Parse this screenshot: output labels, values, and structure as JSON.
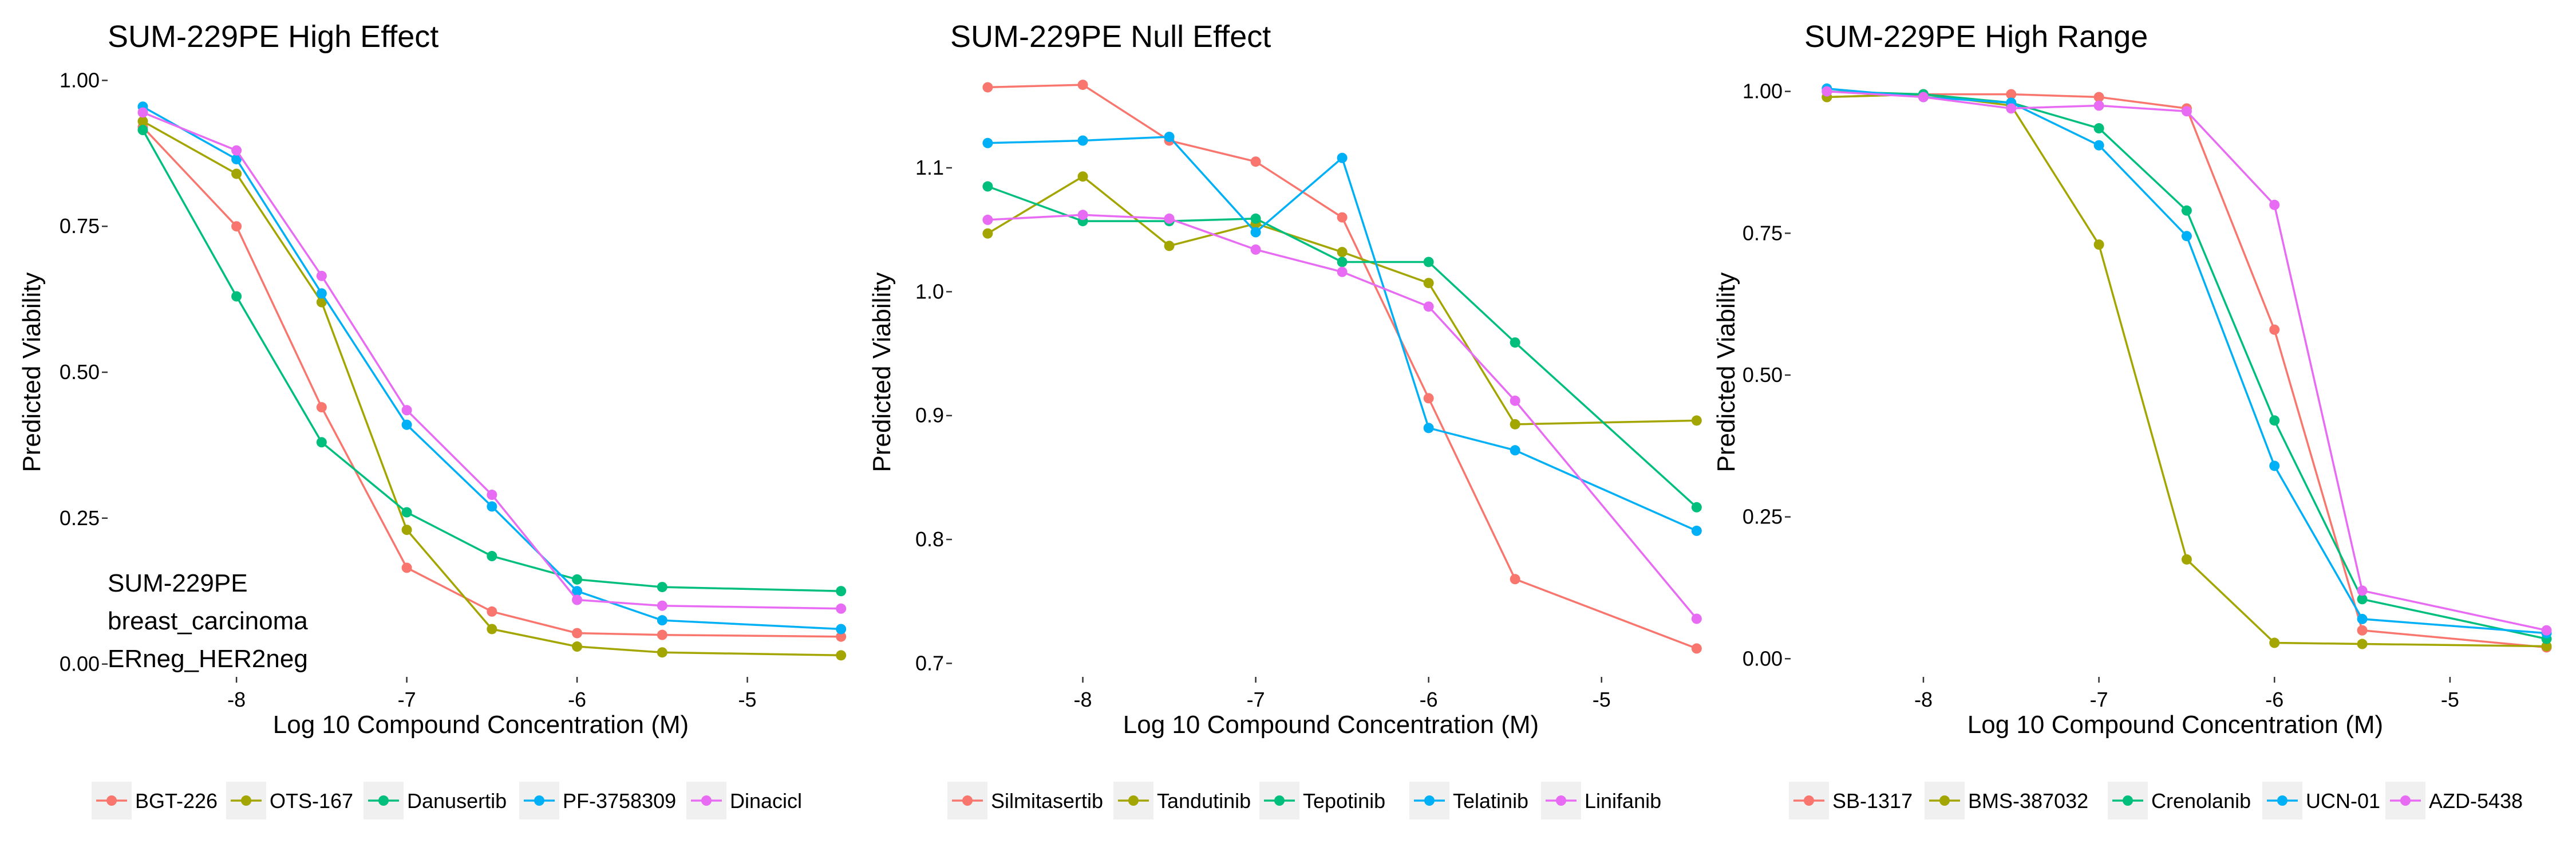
{
  "chart_data": [
    {
      "type": "line",
      "title": "SUM-229PE High Effect",
      "xlabel": "Log 10 Compound Concentration (M)",
      "ylabel": "Predicted Viability",
      "xlim": [
        -8.75,
        -4.38
      ],
      "ylim": [
        -0.02,
        1.02
      ],
      "x": [
        -8.55,
        -8.0,
        -7.5,
        -7.0,
        -6.5,
        -6.0,
        -5.5,
        -4.45
      ],
      "xticks": [
        {
          "v": -8,
          "label": "-8"
        },
        {
          "v": -7,
          "label": "-7"
        },
        {
          "v": -6,
          "label": "-6"
        },
        {
          "v": -5,
          "label": "-5"
        }
      ],
      "yticks": [
        {
          "v": 0.0,
          "label": "0.00"
        },
        {
          "v": 0.25,
          "label": "0.25"
        },
        {
          "v": 0.5,
          "label": "0.50"
        },
        {
          "v": 0.75,
          "label": "0.75"
        },
        {
          "v": 1.0,
          "label": "1.00"
        }
      ],
      "annotation": [
        "SUM-229PE",
        "breast_carcinoma",
        "ERneg_HER2neg"
      ],
      "legend_position": "bottom",
      "series": [
        {
          "name": "BGT-226",
          "color": "#F8766D",
          "values": [
            0.92,
            0.75,
            0.44,
            0.165,
            0.09,
            0.053,
            0.05,
            0.047
          ]
        },
        {
          "name": "OTS-167",
          "color": "#A3A500",
          "values": [
            0.93,
            0.84,
            0.62,
            0.23,
            0.06,
            0.03,
            0.02,
            0.015
          ]
        },
        {
          "name": "Danusertib",
          "color": "#00BF7D",
          "values": [
            0.915,
            0.63,
            0.38,
            0.26,
            0.185,
            0.145,
            0.132,
            0.125
          ]
        },
        {
          "name": "PF-3758309",
          "color": "#00B0F6",
          "values": [
            0.955,
            0.865,
            0.635,
            0.41,
            0.27,
            0.125,
            0.075,
            0.06
          ]
        },
        {
          "name": "Dinacicl",
          "color": "#E76BF3",
          "values": [
            0.945,
            0.88,
            0.665,
            0.435,
            0.29,
            0.11,
            0.1,
            0.095
          ]
        }
      ]
    },
    {
      "type": "line",
      "title": "SUM-229PE Null Effect",
      "xlabel": "Log 10 Compound Concentration (M)",
      "ylabel": "Predicted Viability",
      "xlim": [
        -8.75,
        -4.38
      ],
      "ylim": [
        0.69,
        1.18
      ],
      "x": [
        -8.55,
        -8.0,
        -7.5,
        -7.0,
        -6.5,
        -6.0,
        -5.5,
        -4.45
      ],
      "xticks": [
        {
          "v": -8,
          "label": "-8"
        },
        {
          "v": -7,
          "label": "-7"
        },
        {
          "v": -6,
          "label": "-6"
        },
        {
          "v": -5,
          "label": "-5"
        }
      ],
      "yticks": [
        {
          "v": 0.7,
          "label": "0.7"
        },
        {
          "v": 0.8,
          "label": "0.8"
        },
        {
          "v": 0.9,
          "label": "0.9"
        },
        {
          "v": 1.0,
          "label": "1.0"
        },
        {
          "v": 1.1,
          "label": "1.1"
        }
      ],
      "legend_position": "bottom",
      "series": [
        {
          "name": "Silmitasertib",
          "color": "#F8766D",
          "values": [
            1.165,
            1.167,
            1.122,
            1.105,
            1.06,
            0.914,
            0.768,
            0.712
          ]
        },
        {
          "name": "Tandutinib",
          "color": "#A3A500",
          "values": [
            1.047,
            1.093,
            1.037,
            1.055,
            1.032,
            1.007,
            0.893,
            0.896
          ]
        },
        {
          "name": "Tepotinib",
          "color": "#00BF7D",
          "values": [
            1.085,
            1.057,
            1.057,
            1.059,
            1.024,
            1.024,
            0.959,
            0.826
          ]
        },
        {
          "name": "Telatinib",
          "color": "#00B0F6",
          "values": [
            1.12,
            1.122,
            1.125,
            1.048,
            1.108,
            0.89,
            0.872,
            0.807
          ]
        },
        {
          "name": "Linifanib",
          "color": "#E76BF3",
          "values": [
            1.058,
            1.062,
            1.059,
            1.034,
            1.016,
            0.988,
            0.912,
            0.736
          ]
        }
      ]
    },
    {
      "type": "line",
      "title": "SUM-229PE High Range",
      "xlabel": "Log 10 Compound Concentration (M)",
      "ylabel": "Predicted Viability",
      "xlim": [
        -8.75,
        -4.38
      ],
      "ylim": [
        -0.03,
        1.04
      ],
      "x": [
        -8.55,
        -8.0,
        -7.5,
        -7.0,
        -6.5,
        -6.0,
        -5.5,
        -4.45
      ],
      "xticks": [
        {
          "v": -8,
          "label": "-8"
        },
        {
          "v": -7,
          "label": "-7"
        },
        {
          "v": -6,
          "label": "-6"
        },
        {
          "v": -5,
          "label": "-5"
        }
      ],
      "yticks": [
        {
          "v": 0.0,
          "label": "0.00"
        },
        {
          "v": 0.25,
          "label": "0.25"
        },
        {
          "v": 0.5,
          "label": "0.50"
        },
        {
          "v": 0.75,
          "label": "0.75"
        },
        {
          "v": 1.0,
          "label": "1.00"
        }
      ],
      "legend_position": "bottom",
      "series": [
        {
          "name": "SB-1317",
          "color": "#F8766D",
          "values": [
            0.99,
            0.995,
            0.995,
            0.99,
            0.97,
            0.58,
            0.05,
            0.02
          ]
        },
        {
          "name": "BMS-387032",
          "color": "#A3A500",
          "values": [
            0.99,
            0.995,
            0.975,
            0.73,
            0.175,
            0.028,
            0.026,
            0.022
          ]
        },
        {
          "name": "Crenolanib",
          "color": "#00BF7D",
          "values": [
            1.0,
            0.995,
            0.98,
            0.935,
            0.79,
            0.42,
            0.105,
            0.035
          ]
        },
        {
          "name": "UCN-01",
          "color": "#00B0F6",
          "values": [
            1.005,
            0.99,
            0.98,
            0.905,
            0.745,
            0.34,
            0.07,
            0.045
          ]
        },
        {
          "name": "AZD-5438",
          "color": "#E76BF3",
          "values": [
            1.0,
            0.99,
            0.97,
            0.975,
            0.965,
            0.8,
            0.12,
            0.05
          ]
        }
      ]
    }
  ]
}
